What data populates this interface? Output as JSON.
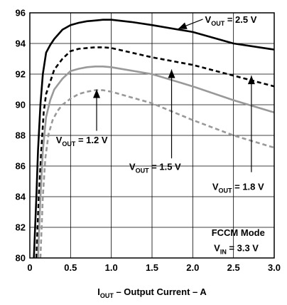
{
  "chart_data": {
    "type": "line",
    "xlabel_main": "I",
    "xlabel_sub": "OUT",
    "xlabel_rest": " – Output Current – A",
    "xlim": [
      0,
      3.0
    ],
    "ylim": [
      80,
      96
    ],
    "x_ticks": [
      "0",
      "0.5",
      "1.0",
      "1.5",
      "2.0",
      "2.5",
      "3.0"
    ],
    "y_ticks": [
      "80",
      "82",
      "84",
      "86",
      "88",
      "90",
      "92",
      "94",
      "96"
    ],
    "grid": true,
    "series": [
      {
        "name": "VOUT = 2.5 V",
        "color": "#000000",
        "dash": "solid",
        "points": [
          [
            0.05,
            80
          ],
          [
            0.08,
            84
          ],
          [
            0.1,
            87
          ],
          [
            0.13,
            90
          ],
          [
            0.16,
            92
          ],
          [
            0.2,
            93.4
          ],
          [
            0.25,
            93.9
          ],
          [
            0.3,
            94.3
          ],
          [
            0.4,
            94.9
          ],
          [
            0.5,
            95.2
          ],
          [
            0.6,
            95.35
          ],
          [
            0.7,
            95.45
          ],
          [
            0.8,
            95.5
          ],
          [
            0.9,
            95.55
          ],
          [
            1.0,
            95.55
          ],
          [
            1.25,
            95.4
          ],
          [
            1.5,
            95.2
          ],
          [
            2.0,
            94.75
          ],
          [
            2.5,
            94.0
          ],
          [
            3.0,
            93.6
          ]
        ]
      },
      {
        "name": "VOUT = 1.8 V",
        "color": "#000000",
        "dash": "dashed",
        "points": [
          [
            0.08,
            80
          ],
          [
            0.11,
            84
          ],
          [
            0.14,
            87
          ],
          [
            0.17,
            89.5
          ],
          [
            0.2,
            90.7
          ],
          [
            0.25,
            91.5
          ],
          [
            0.3,
            92.3
          ],
          [
            0.4,
            93.0
          ],
          [
            0.5,
            93.5
          ],
          [
            0.6,
            93.65
          ],
          [
            0.7,
            93.7
          ],
          [
            0.8,
            93.75
          ],
          [
            0.9,
            93.75
          ],
          [
            1.0,
            93.7
          ],
          [
            1.5,
            93.1
          ],
          [
            2.0,
            92.6
          ],
          [
            2.5,
            91.9
          ],
          [
            3.0,
            91.2
          ]
        ]
      },
      {
        "name": "VOUT = 1.5 V",
        "color": "#999999",
        "dash": "solid",
        "points": [
          [
            0.1,
            80
          ],
          [
            0.13,
            84
          ],
          [
            0.16,
            87
          ],
          [
            0.2,
            89.2
          ],
          [
            0.25,
            90.3
          ],
          [
            0.3,
            91.0
          ],
          [
            0.4,
            91.7
          ],
          [
            0.5,
            92.2
          ],
          [
            0.6,
            92.35
          ],
          [
            0.7,
            92.45
          ],
          [
            0.8,
            92.5
          ],
          [
            0.9,
            92.5
          ],
          [
            1.0,
            92.45
          ],
          [
            1.5,
            92.0
          ],
          [
            2.0,
            91.2
          ],
          [
            2.5,
            90.3
          ],
          [
            3.0,
            89.5
          ]
        ]
      },
      {
        "name": "VOUT = 1.2 V",
        "color": "#999999",
        "dash": "dashed",
        "points": [
          [
            0.13,
            80
          ],
          [
            0.16,
            84
          ],
          [
            0.19,
            86.5
          ],
          [
            0.23,
            88.1
          ],
          [
            0.28,
            89.0
          ],
          [
            0.34,
            89.6
          ],
          [
            0.4,
            90.0
          ],
          [
            0.5,
            90.4
          ],
          [
            0.6,
            90.7
          ],
          [
            0.7,
            90.85
          ],
          [
            0.8,
            90.95
          ],
          [
            0.9,
            90.95
          ],
          [
            1.0,
            90.85
          ],
          [
            1.5,
            90.1
          ],
          [
            2.0,
            89.0
          ],
          [
            2.5,
            88.0
          ],
          [
            3.0,
            87.2
          ]
        ]
      }
    ],
    "annotations": [
      {
        "main": "V",
        "sub": "OUT",
        "rest": " = 2.5 V",
        "x": 2.15,
        "y": 95.35,
        "arrow": true,
        "arrow_to": [
          1.82,
          94.95
        ]
      },
      {
        "main": "V",
        "sub": "OUT",
        "rest": " = 1.2 V",
        "x": 0.32,
        "y": 87.5,
        "arrow": true,
        "arrow_from": [
          0.82,
          88.3
        ],
        "arrow_to": [
          0.82,
          91.0
        ]
      },
      {
        "main": "V",
        "sub": "OUT",
        "rest": " = 1.5 V",
        "x": 1.22,
        "y": 85.75,
        "arrow": true,
        "arrow_from": [
          1.74,
          86.5
        ],
        "arrow_to": [
          1.74,
          92.3
        ]
      },
      {
        "main": "V",
        "sub": "OUT",
        "rest": " = 1.8 V",
        "x": 2.24,
        "y": 84.45,
        "arrow": true,
        "arrow_from": [
          2.72,
          85.6
        ],
        "arrow_to": [
          2.72,
          91.9
        ]
      },
      {
        "main": "FCCM Mode",
        "sub": "",
        "rest": "",
        "x": 2.23,
        "y": 81.45,
        "arrow": false
      },
      {
        "main": "V",
        "sub": "IN",
        "rest": " = 3.3 V",
        "x": 2.26,
        "y": 80.45,
        "arrow": false
      }
    ]
  }
}
